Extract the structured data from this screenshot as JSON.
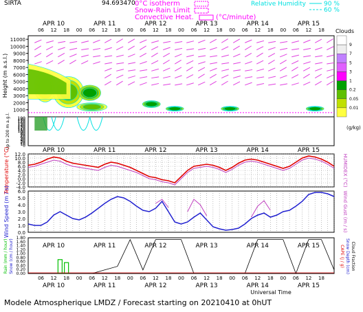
{
  "header": {
    "station": "SIRTA",
    "altitude_m": "94.693470",
    "legend": {
      "isotherm": "0°C isotherm",
      "snow_rain": "Snow-Rain Limit",
      "convective": "Convective Heat.",
      "convective_unit": "(°C/minute)",
      "rh_label": "Relative Humidity",
      "rh_90": "90 %",
      "rh_60": "60 %"
    }
  },
  "date_labels": [
    "APR 10",
    "APR 11",
    "APR 12",
    "APR 13",
    "APR 14",
    "APR 15"
  ],
  "hour_labels": [
    "06",
    "12",
    "18",
    "00",
    "06",
    "12",
    "18",
    "00",
    "06",
    "12",
    "18",
    "00",
    "06",
    "12",
    "18",
    "00",
    "06",
    "12",
    "18",
    "00",
    "06",
    "12",
    "18"
  ],
  "clouds": {
    "title": "Clouds",
    "unit": "(g/kg)",
    "levels": [
      "9",
      "7",
      "5",
      "3",
      "1",
      "0.2",
      "0.05",
      "0.01"
    ],
    "colors": [
      "#ffffff",
      "#eeeeee",
      "#c080ff",
      "#e060ff",
      "#ff00ff",
      "#00a000",
      "#60c000",
      "#c0e000",
      "#ffff40"
    ]
  },
  "panel_labels": {
    "height": "Height  (m a.s.l.)",
    "lowlevel": "Up to 200 m a.g.l.",
    "temperature": "Temperature (°C)",
    "humidex": "HUMIDEX (°C)",
    "wind_speed": "Wind Speed (m / s)",
    "wind_gust": "Wind Gust (m / s)",
    "rain": "Rain (mm / hour)",
    "snow": "Snow (cm / hour)",
    "cape": "CAPE (J / g)",
    "snow_depth": "Snow Depth (cm)",
    "cloud_fraction": "Cloud Fraction"
  },
  "footer": {
    "universal_time": "Universal Time",
    "title": "Modele Atmospherique LMDZ / Forecast starting on 20210410 at 0hUT"
  },
  "colors": {
    "temperature": "#e00000",
    "humidex": "#c040c0",
    "wind_speed": "#2020d0",
    "wind_gust": "#c040c0",
    "rain": "#00c000",
    "cape": "#e00000",
    "cloud_fraction": "#000000",
    "wind_arrows": "#e040e0",
    "rh": "#00e0e0"
  },
  "chart_data": [
    {
      "type": "heatmap",
      "name": "cloud_height_section",
      "ylabel": "Height (m a.s.l.)",
      "yticks": [
        1000,
        2000,
        3000,
        4000,
        5000,
        6000,
        7000,
        8000,
        9000,
        10000,
        11000
      ],
      "ylim": [
        0,
        11500
      ],
      "lowlevel_yticks": [
        0,
        10,
        20,
        30,
        40,
        50,
        60,
        70,
        80,
        90,
        100,
        110,
        120,
        130,
        140,
        150,
        160,
        170,
        180,
        190
      ],
      "xlim_hours": [
        0,
        144
      ]
    },
    {
      "type": "line",
      "name": "temperature",
      "ylabel": "Temperature (°C)",
      "ylabel_right": "HUMIDEX (°C)",
      "yticks": [
        -4.0,
        -2.0,
        0.0,
        2.0,
        4.0,
        6.0,
        8.0,
        10.0,
        12.0
      ],
      "ylim": [
        -4,
        12
      ],
      "x_hours": [
        0,
        3,
        6,
        9,
        12,
        15,
        18,
        21,
        24,
        27,
        30,
        33,
        36,
        39,
        42,
        45,
        48,
        51,
        54,
        57,
        60,
        63,
        66,
        69,
        72,
        75,
        78,
        81,
        84,
        87,
        90,
        93,
        96,
        99,
        102,
        105,
        108,
        111,
        114,
        117,
        120,
        123,
        126,
        129,
        132,
        135,
        138,
        141,
        144
      ],
      "series": [
        {
          "name": "Temperature",
          "values": [
            6.5,
            7,
            8,
            9.5,
            10.5,
            10,
            8.5,
            7.5,
            7,
            6.5,
            6,
            5.5,
            7,
            8,
            7.5,
            6.5,
            5.5,
            4,
            2.5,
            1,
            0.5,
            -0.5,
            -1,
            -2,
            1,
            4,
            6,
            6.5,
            7,
            6.5,
            5.5,
            4,
            5.5,
            7.5,
            9,
            9.5,
            9,
            8,
            7,
            6,
            5,
            6,
            8,
            10,
            11,
            10.5,
            9.5,
            8,
            6
          ]
        },
        {
          "name": "HUMIDEX",
          "values": [
            5.5,
            6,
            7,
            8,
            9,
            8.5,
            7,
            6,
            5.5,
            5,
            4.5,
            4,
            5.5,
            6.5,
            6,
            5,
            4,
            3,
            1.5,
            0,
            -0.5,
            -1.5,
            -2,
            -3,
            0,
            3,
            5,
            5.5,
            6,
            5.5,
            4.5,
            3,
            4.5,
            6.5,
            8,
            8.5,
            8,
            7,
            6,
            5,
            4,
            5,
            7,
            9,
            10,
            9.5,
            8.5,
            7,
            5
          ]
        }
      ]
    },
    {
      "type": "line",
      "name": "wind",
      "ylabel": "Wind Speed (m / s)",
      "ylabel_right": "Wind Gust (m / s)",
      "yticks": [
        0.0,
        1.0,
        2.0,
        3.0,
        4.0,
        5.0,
        6.0
      ],
      "ylim": [
        0,
        6
      ],
      "x_hours": [
        0,
        3,
        6,
        9,
        12,
        15,
        18,
        21,
        24,
        27,
        30,
        33,
        36,
        39,
        42,
        45,
        48,
        51,
        54,
        57,
        60,
        63,
        66,
        69,
        72,
        75,
        78,
        81,
        84,
        87,
        90,
        93,
        96,
        99,
        102,
        105,
        108,
        111,
        114,
        117,
        120,
        123,
        126,
        129,
        132,
        135,
        138,
        141,
        144
      ],
      "series": [
        {
          "name": "Wind Speed",
          "values": [
            1.2,
            1.0,
            1.0,
            1.5,
            2.5,
            3.0,
            2.5,
            2.0,
            1.8,
            2.2,
            2.8,
            3.5,
            4.2,
            4.8,
            5.2,
            5.0,
            4.5,
            3.8,
            3.2,
            3.0,
            3.5,
            4.5,
            3.0,
            1.5,
            1.2,
            1.5,
            2.2,
            2.8,
            1.8,
            0.8,
            0.5,
            0.3,
            0.4,
            0.6,
            1.2,
            2.0,
            2.5,
            2.8,
            2.2,
            2.5,
            3.0,
            3.2,
            3.8,
            4.5,
            5.5,
            5.8,
            5.8,
            5.6,
            5.2
          ]
        },
        {
          "name": "Wind Gust",
          "values": [
            null,
            null,
            null,
            null,
            null,
            null,
            null,
            null,
            null,
            null,
            null,
            null,
            null,
            null,
            null,
            null,
            null,
            null,
            null,
            null,
            4.2,
            4.8,
            3.6,
            null,
            null,
            3.0,
            4.8,
            4.0,
            2.4,
            null,
            null,
            null,
            null,
            null,
            null,
            2.2,
            3.8,
            4.6,
            3.2,
            null,
            null,
            null,
            null,
            null,
            null,
            null,
            null,
            null,
            null
          ]
        }
      ]
    },
    {
      "type": "bar",
      "name": "precipitation",
      "ylabel": "Rain (mm / hour)",
      "yticks": [
        0.0,
        0.2,
        0.4,
        0.6,
        0.8,
        1.0,
        1.2,
        1.4,
        1.6,
        1.8
      ],
      "ylim": [
        0,
        1.8
      ],
      "rain_bars": [
        {
          "x_hours": 15,
          "value": 0.7
        },
        {
          "x_hours": 18,
          "value": 0.55
        }
      ],
      "cloud_fraction_x_hours": [
        0,
        6,
        12,
        18,
        24,
        30,
        36,
        42,
        48,
        54,
        60,
        66,
        72,
        78,
        84,
        90,
        96,
        102,
        108,
        114,
        120,
        126,
        132,
        138,
        144
      ],
      "cloud_fraction": [
        0,
        0,
        0,
        0,
        0,
        0,
        0.1,
        0.2,
        0.95,
        0.1,
        0.95,
        0.95,
        0.95,
        0,
        0,
        0,
        0,
        0,
        0.95,
        0.95,
        0.95,
        0,
        0.95,
        0.95,
        0.1
      ]
    }
  ]
}
